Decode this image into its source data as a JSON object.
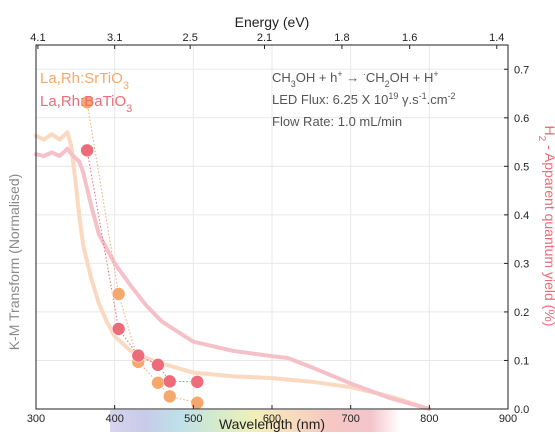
{
  "colors": {
    "sr": "#f6a86c",
    "ba": "#ee6b7a",
    "sr_curve": "#fbd8c0",
    "ba_curve": "#f5c0c8",
    "left_axis_text": "#8a8a8a",
    "right_axis_text": "#ee6b7a",
    "grid": "#e8e8e8"
  },
  "chart_data": {
    "type": "line",
    "xlabel": "Wavelength (nm)",
    "x_top_label": "Energy (eV)",
    "ylabel_left": "K-M Transform (Normalised)",
    "ylabel_right": {
      "prefix": "H",
      "sub": "2",
      "suffix": " - Apparent quantum yield (%)"
    },
    "xlim": [
      300,
      900
    ],
    "ylim_right": [
      0,
      0.75
    ],
    "ylim_left": [
      0,
      1
    ],
    "x_ticks": [
      "300",
      "400",
      "500",
      "600",
      "700",
      "800",
      "900"
    ],
    "x_tick_values": [
      300,
      400,
      500,
      600,
      700,
      800,
      900
    ],
    "top_ticks": [
      "4.1",
      "3.1",
      "2.5",
      "2.1",
      "1.8",
      "1.6",
      "1.4"
    ],
    "top_tick_values": [
      4.1,
      3.1,
      2.5,
      2.1,
      1.8,
      1.6,
      1.4
    ],
    "y_right_ticks": [
      "0.0",
      "0.1",
      "0.2",
      "0.3",
      "0.4",
      "0.5",
      "0.6",
      "0.7"
    ],
    "y_right_tick_values": [
      0.0,
      0.1,
      0.2,
      0.3,
      0.4,
      0.5,
      0.6,
      0.7
    ],
    "grid": true,
    "legend_placement": "top-left",
    "legend": [
      {
        "main": "La,Rh:SrTiO",
        "sub": "3",
        "color_key": "sr"
      },
      {
        "main": "La,Rh:BaTiO",
        "sub": "3",
        "color_key": "ba"
      }
    ],
    "annotations": {
      "reaction": {
        "a": "CH",
        "a_sub": "3",
        "b": "OH + h",
        "b_sup": "+",
        "c": " → ",
        "c_sup": "·",
        "d": "CH",
        "d_sub": "2",
        "e": "OH + H",
        "e_sup": "+"
      },
      "flux": {
        "a": "LED Flux: 6.25 X 10",
        "a_sup": "19",
        "b": " γ.s",
        "b_sup": "-1",
        "c": ".cm",
        "c_sup": "-2"
      },
      "flow": "Flow Rate: 1.0 mL/min"
    },
    "series": [
      {
        "name": "La,Rh:SrTiO3",
        "kind": "aqy",
        "color_key": "sr",
        "x": [
          365,
          405,
          430,
          455,
          470,
          505
        ],
        "y": [
          0.632,
          0.237,
          0.097,
          0.054,
          0.026,
          0.013
        ]
      },
      {
        "name": "La,Rh:BaTiO3",
        "kind": "aqy",
        "color_key": "ba",
        "x": [
          365,
          405,
          430,
          455,
          470,
          505
        ],
        "y": [
          0.533,
          0.165,
          0.11,
          0.091,
          0.057,
          0.056
        ]
      },
      {
        "name": "La,Rh:SrTiO3",
        "kind": "km",
        "color_key": "sr_curve",
        "x": [
          300,
          310,
          320,
          330,
          340,
          345,
          350,
          355,
          360,
          370,
          380,
          390,
          400,
          420,
          440,
          460,
          500,
          550,
          600,
          650,
          700,
          750,
          800
        ],
        "y": [
          0.75,
          0.74,
          0.755,
          0.74,
          0.76,
          0.72,
          0.63,
          0.53,
          0.45,
          0.36,
          0.29,
          0.24,
          0.2,
          0.16,
          0.14,
          0.125,
          0.1,
          0.09,
          0.085,
          0.075,
          0.06,
          0.035,
          0.0
        ]
      },
      {
        "name": "La,Rh:BaTiO3",
        "kind": "km",
        "color_key": "ba_curve",
        "x": [
          300,
          310,
          320,
          330,
          340,
          345,
          350,
          355,
          360,
          370,
          380,
          390,
          400,
          420,
          440,
          460,
          500,
          550,
          600,
          620,
          650,
          700,
          750,
          800
        ],
        "y": [
          0.7,
          0.695,
          0.705,
          0.695,
          0.715,
          0.7,
          0.69,
          0.68,
          0.65,
          0.56,
          0.48,
          0.44,
          0.4,
          0.34,
          0.285,
          0.24,
          0.185,
          0.16,
          0.145,
          0.14,
          0.115,
          0.07,
          0.03,
          0.0
        ]
      }
    ]
  }
}
